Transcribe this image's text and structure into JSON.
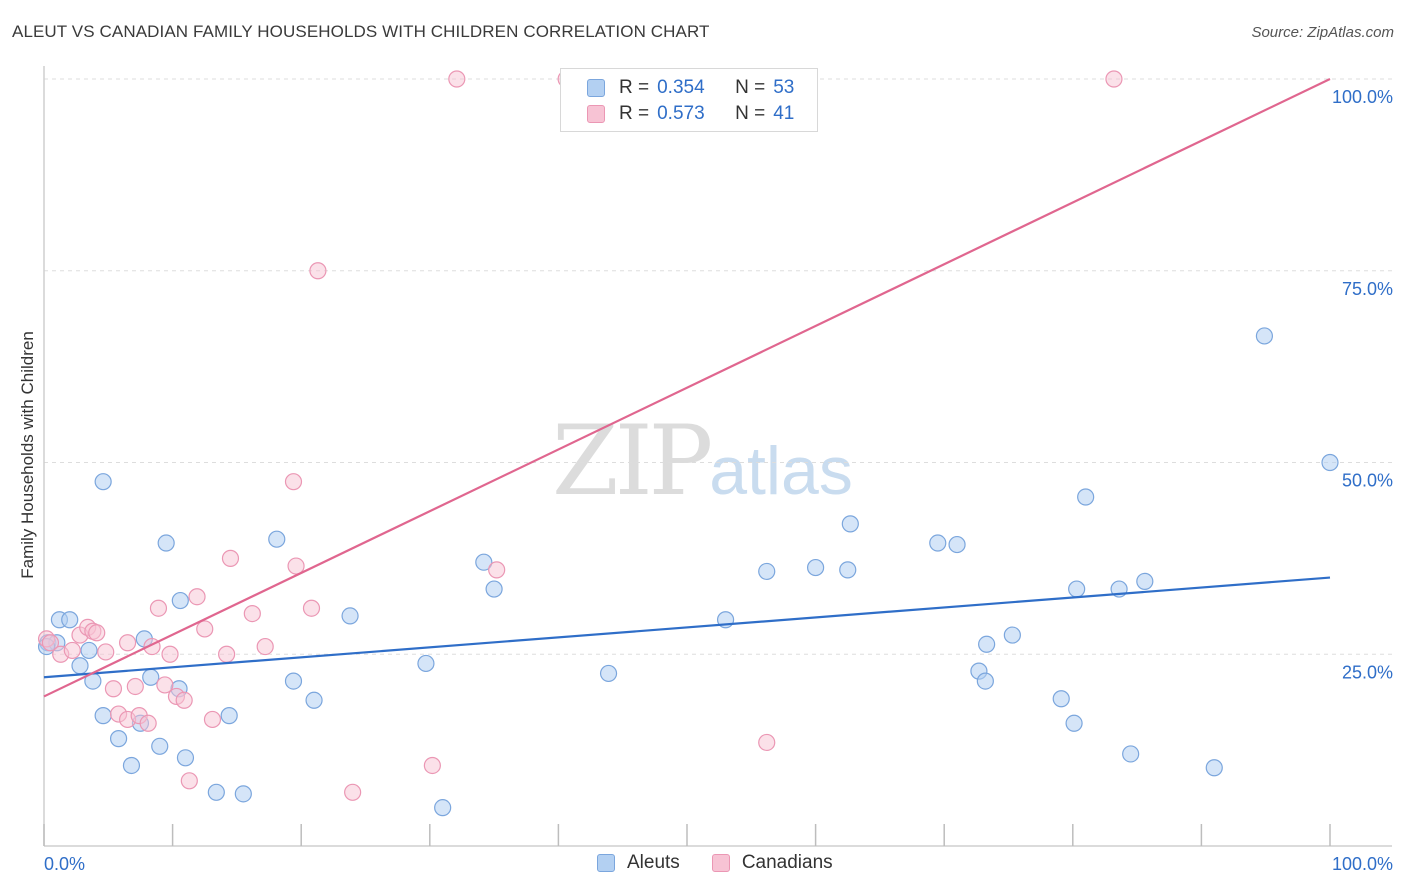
{
  "title": "ALEUT VS CANADIAN FAMILY HOUSEHOLDS WITH CHILDREN CORRELATION CHART",
  "source": "Source: ZipAtlas.com",
  "watermark": {
    "zip": "ZIP",
    "atlas": "atlas"
  },
  "legend": {
    "aleuts": {
      "r_label": "R =",
      "r_value": "0.354",
      "n_label": "N =",
      "n_value": "53"
    },
    "canadians": {
      "r_label": "R =",
      "r_value": "0.573",
      "n_label": "N =",
      "n_value": "41"
    }
  },
  "bottom_legend": {
    "aleuts": "Aleuts",
    "canadians": "Canadians"
  },
  "colors": {
    "aleut_fill": "#b3d0f2",
    "aleut_stroke": "#7ba6dd",
    "aleut_line": "#2f6ec8",
    "canadian_fill": "#f7c3d4",
    "canadian_stroke": "#eb97b4",
    "canadian_line": "#e0668f",
    "tick_label": "#2f6ec8",
    "grid": "#dddddd"
  },
  "chart_data": {
    "type": "scatter",
    "title": "ALEUT VS CANADIAN FAMILY HOUSEHOLDS WITH CHILDREN CORRELATION CHART",
    "xlabel": "",
    "ylabel": "Family Households with Children",
    "xlim": [
      0,
      100
    ],
    "ylim": [
      0,
      100
    ],
    "x_tick_labels": [
      "0.0%",
      "100.0%"
    ],
    "y_ticks": [
      {
        "value": 25,
        "label": "25.0%"
      },
      {
        "value": 50,
        "label": "50.0%"
      },
      {
        "value": 75,
        "label": "75.0%"
      },
      {
        "value": 100,
        "label": "100.0%"
      }
    ],
    "series": [
      {
        "name": "Aleuts",
        "trend": {
          "x": [
            0,
            100
          ],
          "y": [
            22.0,
            35.0
          ]
        },
        "points": [
          [
            0.3,
            26.5
          ],
          [
            1.2,
            29.5
          ],
          [
            2.0,
            29.5
          ],
          [
            1.0,
            26.5
          ],
          [
            2.8,
            23.5
          ],
          [
            3.5,
            25.5
          ],
          [
            3.8,
            21.5
          ],
          [
            4.6,
            47.5
          ],
          [
            4.6,
            17.0
          ],
          [
            5.8,
            14.0
          ],
          [
            6.8,
            10.5
          ],
          [
            7.5,
            16.0
          ],
          [
            7.8,
            27.0
          ],
          [
            8.3,
            22.0
          ],
          [
            9.0,
            13.0
          ],
          [
            9.5,
            39.5
          ],
          [
            10.5,
            20.5
          ],
          [
            10.6,
            32.0
          ],
          [
            11.0,
            11.5
          ],
          [
            13.4,
            7.0
          ],
          [
            14.4,
            17.0
          ],
          [
            15.5,
            6.8
          ],
          [
            18.1,
            40.0
          ],
          [
            19.4,
            21.5
          ],
          [
            21.0,
            19.0
          ],
          [
            23.8,
            30.0
          ],
          [
            29.7,
            23.8
          ],
          [
            31.0,
            5.0
          ],
          [
            34.2,
            37.0
          ],
          [
            35.0,
            33.5
          ],
          [
            43.9,
            22.5
          ],
          [
            53.0,
            29.5
          ],
          [
            56.2,
            35.8
          ],
          [
            60.0,
            36.3
          ],
          [
            62.5,
            36.0
          ],
          [
            62.7,
            42.0
          ],
          [
            69.5,
            39.5
          ],
          [
            71.0,
            39.3
          ],
          [
            72.7,
            22.8
          ],
          [
            73.2,
            21.5
          ],
          [
            73.3,
            26.3
          ],
          [
            75.3,
            27.5
          ],
          [
            79.1,
            19.2
          ],
          [
            80.1,
            16.0
          ],
          [
            80.3,
            33.5
          ],
          [
            81.0,
            45.5
          ],
          [
            83.6,
            33.5
          ],
          [
            84.5,
            12.0
          ],
          [
            85.6,
            34.5
          ],
          [
            91.0,
            10.2
          ],
          [
            94.9,
            66.5
          ],
          [
            100.0,
            50.0
          ],
          [
            0.2,
            26.0
          ]
        ]
      },
      {
        "name": "Canadians",
        "trend": {
          "x": [
            0,
            100
          ],
          "y": [
            19.5,
            100
          ]
        },
        "points": [
          [
            0.2,
            27.0
          ],
          [
            0.5,
            26.5
          ],
          [
            1.3,
            25.0
          ],
          [
            2.2,
            25.5
          ],
          [
            2.8,
            27.5
          ],
          [
            3.4,
            28.5
          ],
          [
            3.8,
            28.0
          ],
          [
            4.1,
            27.8
          ],
          [
            4.8,
            25.3
          ],
          [
            5.4,
            20.5
          ],
          [
            5.8,
            17.2
          ],
          [
            6.5,
            16.5
          ],
          [
            6.5,
            26.5
          ],
          [
            7.1,
            20.8
          ],
          [
            7.4,
            17.0
          ],
          [
            8.1,
            16.0
          ],
          [
            8.4,
            26.0
          ],
          [
            8.9,
            31.0
          ],
          [
            9.4,
            21.0
          ],
          [
            9.8,
            25.0
          ],
          [
            10.3,
            19.5
          ],
          [
            10.9,
            19.0
          ],
          [
            11.3,
            8.5
          ],
          [
            11.9,
            32.5
          ],
          [
            12.5,
            28.3
          ],
          [
            13.1,
            16.5
          ],
          [
            14.2,
            25.0
          ],
          [
            14.5,
            37.5
          ],
          [
            16.2,
            30.3
          ],
          [
            17.2,
            26.0
          ],
          [
            19.4,
            47.5
          ],
          [
            19.6,
            36.5
          ],
          [
            20.8,
            31.0
          ],
          [
            21.3,
            75.0
          ],
          [
            24.0,
            7.0
          ],
          [
            30.2,
            10.5
          ],
          [
            32.1,
            100.0
          ],
          [
            35.2,
            36.0
          ],
          [
            40.6,
            100.0
          ],
          [
            56.2,
            13.5
          ],
          [
            83.2,
            100.0
          ]
        ]
      }
    ]
  }
}
